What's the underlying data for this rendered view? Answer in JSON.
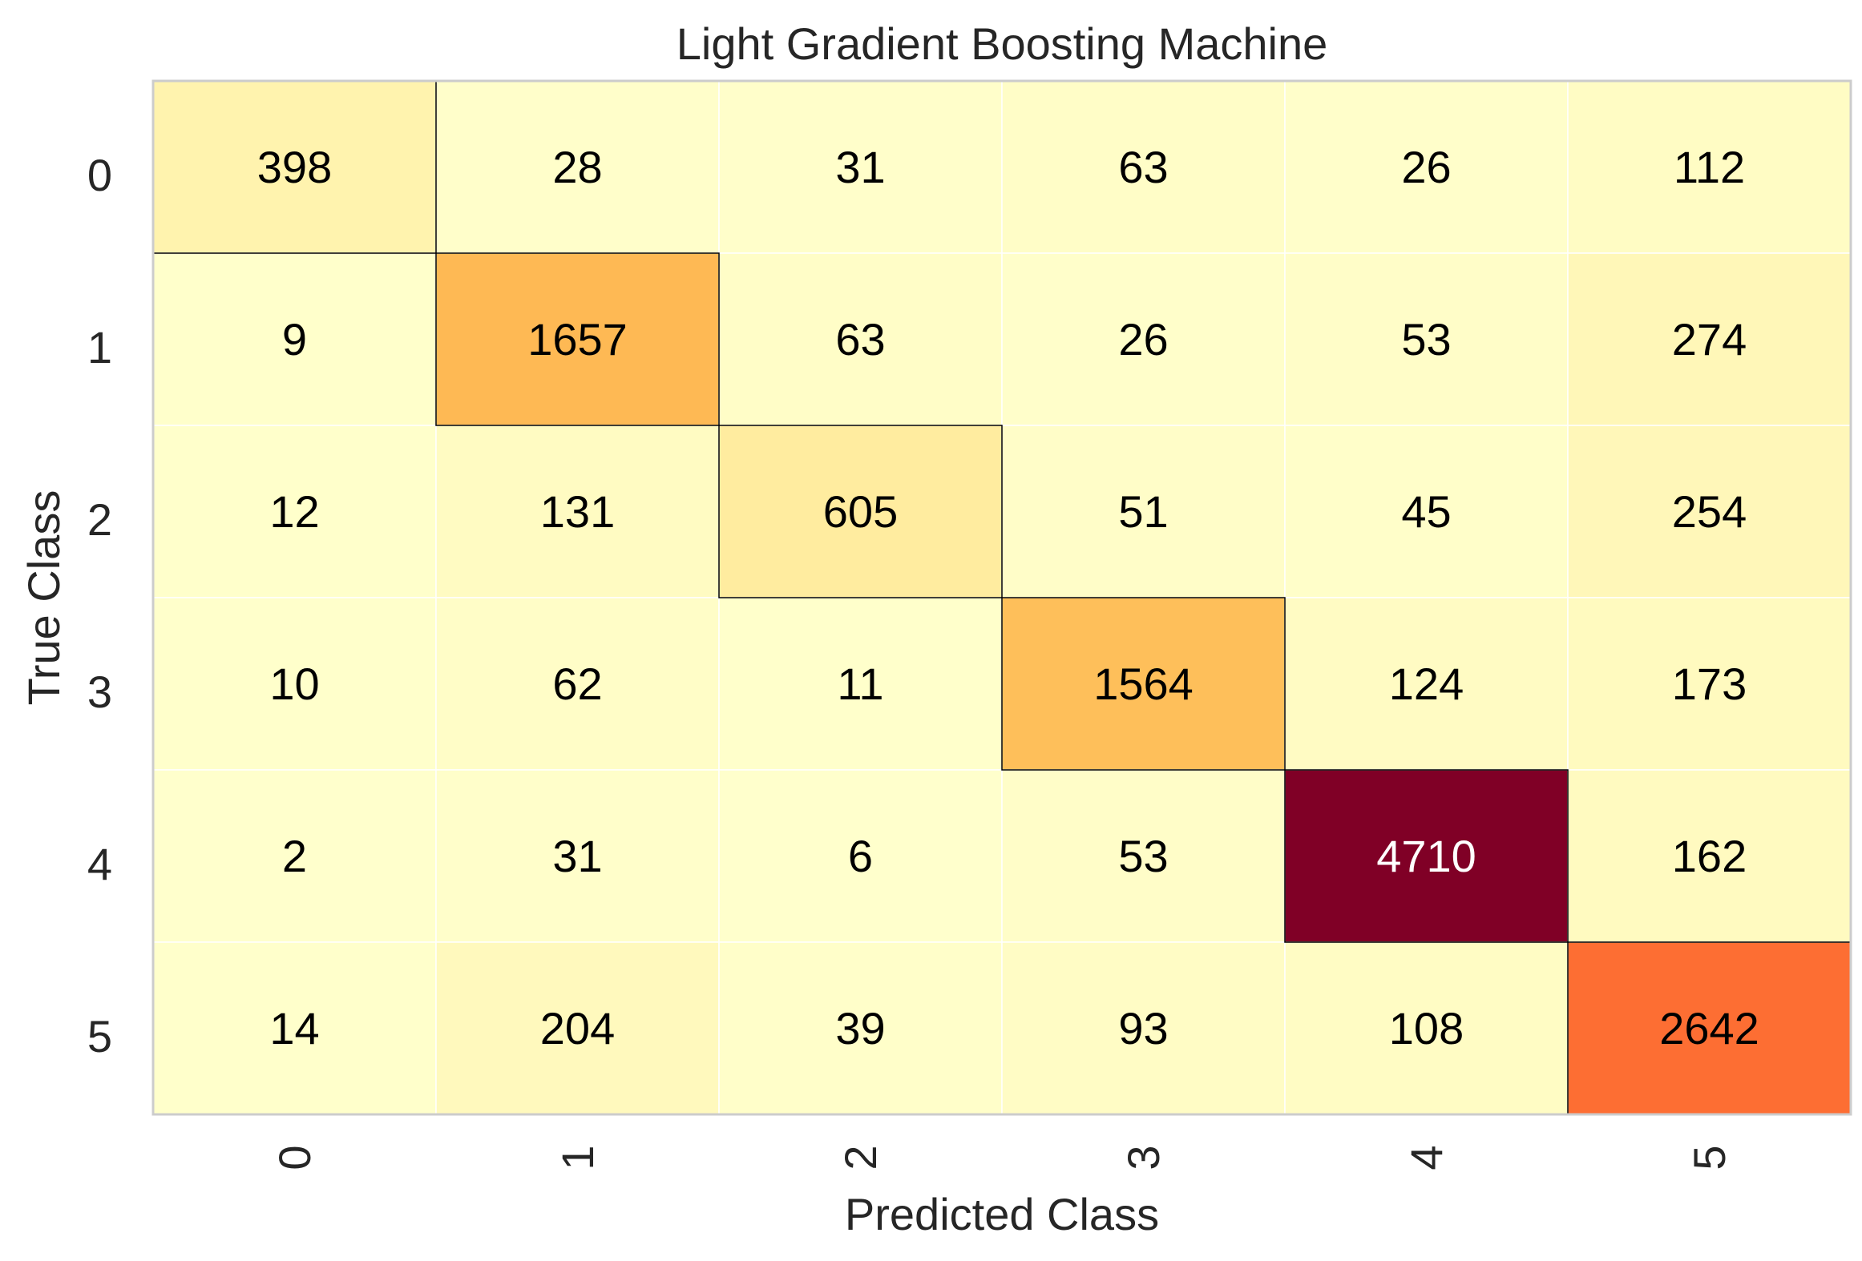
{
  "chart_data": {
    "type": "heatmap",
    "title": "Light Gradient Boosting Machine",
    "xlabel": "Predicted Class",
    "ylabel": "True Class",
    "x_categories": [
      "0",
      "1",
      "2",
      "3",
      "4",
      "5"
    ],
    "y_categories": [
      "0",
      "1",
      "2",
      "3",
      "4",
      "5"
    ],
    "values": [
      [
        398,
        28,
        31,
        63,
        26,
        112
      ],
      [
        9,
        1657,
        63,
        26,
        53,
        274
      ],
      [
        12,
        131,
        605,
        51,
        45,
        254
      ],
      [
        10,
        62,
        11,
        1564,
        124,
        173
      ],
      [
        2,
        31,
        6,
        53,
        4710,
        162
      ],
      [
        14,
        204,
        39,
        93,
        108,
        2642
      ]
    ],
    "colormap": "YlOrRd",
    "colors": {
      "low": "#ffffcc",
      "high": "#800026",
      "text_dark": "#000000",
      "text_light": "#ffffff",
      "grid": "#ffffff",
      "frame": "#cccccc"
    },
    "diagonal_outlined": true
  }
}
